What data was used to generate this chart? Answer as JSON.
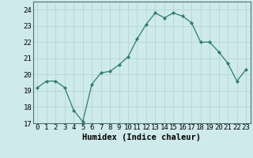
{
  "x": [
    0,
    1,
    2,
    3,
    4,
    5,
    6,
    7,
    8,
    9,
    10,
    11,
    12,
    13,
    14,
    15,
    16,
    17,
    18,
    19,
    20,
    21,
    22,
    23
  ],
  "y": [
    19.2,
    19.6,
    19.6,
    19.2,
    17.8,
    17.1,
    19.4,
    20.1,
    20.2,
    20.6,
    21.1,
    22.2,
    23.1,
    23.8,
    23.5,
    23.8,
    23.6,
    23.2,
    22.0,
    22.0,
    21.4,
    20.7,
    19.6,
    20.3
  ],
  "line_color": "#2e7d6e",
  "marker": "D",
  "marker_size": 2.2,
  "bg_color": "#ceeaea",
  "grid_color": "#b8d8d8",
  "xlabel": "Humidex (Indice chaleur)",
  "ylim": [
    17,
    24.5
  ],
  "yticks": [
    17,
    18,
    19,
    20,
    21,
    22,
    23,
    24
  ],
  "xticks": [
    0,
    1,
    2,
    3,
    4,
    5,
    6,
    7,
    8,
    9,
    10,
    11,
    12,
    13,
    14,
    15,
    16,
    17,
    18,
    19,
    20,
    21,
    22,
    23
  ],
  "xtick_labels": [
    "0",
    "1",
    "2",
    "3",
    "4",
    "5",
    "6",
    "7",
    "8",
    "9",
    "10",
    "11",
    "12",
    "13",
    "14",
    "15",
    "16",
    "17",
    "18",
    "19",
    "20",
    "21",
    "22",
    "23"
  ],
  "axis_fontsize": 7.5,
  "tick_fontsize": 6.5
}
